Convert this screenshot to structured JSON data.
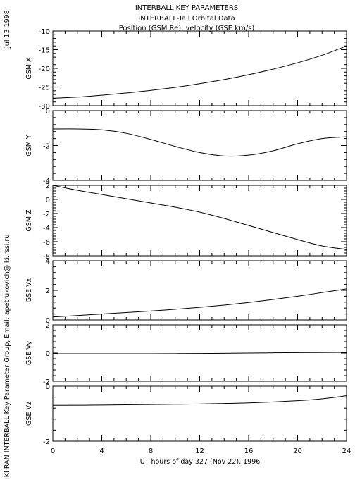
{
  "header": {
    "title_lines": [
      "INTERBALL KEY PARAMETERS",
      "INTERBALL-Tail Orbital Data",
      "Position (GSM Re), velocity (GSE km/s)"
    ]
  },
  "side_labels": {
    "date": "Jul 13 1998",
    "credit": "IKI RAN INTERBALL Key Parameter Group, Email: apetrukovich@iki.rssi.ru"
  },
  "x_axis": {
    "label": "UT hours of day 327 (Nov 22), 1996",
    "range": [
      0,
      24
    ],
    "ticks": [
      "0",
      "4",
      "8",
      "12",
      "16",
      "20",
      "24"
    ]
  },
  "colors": {
    "line": "#000000",
    "background": "#ffffff"
  },
  "chart_data": [
    {
      "type": "line",
      "ylabel": "GSM X",
      "ylim": [
        -30,
        -10
      ],
      "yticks": [
        -30,
        -25,
        -20,
        -15,
        -10
      ],
      "x": [
        0,
        2,
        4,
        6,
        8,
        10,
        12,
        14,
        16,
        18,
        20,
        22,
        24
      ],
      "values": [
        -28.0,
        -27.7,
        -27.2,
        -26.6,
        -25.9,
        -25.1,
        -24.1,
        -23.0,
        -21.7,
        -20.2,
        -18.5,
        -16.5,
        -14.0
      ]
    },
    {
      "type": "line",
      "ylabel": "GSM Y",
      "ylim": [
        -4,
        0
      ],
      "yticks": [
        -4,
        -2,
        0
      ],
      "x": [
        0,
        2,
        4,
        6,
        8,
        10,
        12,
        14,
        16,
        18,
        20,
        22,
        24
      ],
      "values": [
        -1.05,
        -1.05,
        -1.1,
        -1.3,
        -1.65,
        -2.05,
        -2.4,
        -2.6,
        -2.55,
        -2.3,
        -1.9,
        -1.6,
        -1.5
      ]
    },
    {
      "type": "line",
      "ylabel": "GSM Z",
      "ylim": [
        -8,
        2
      ],
      "yticks": [
        -8,
        -6,
        -4,
        -2,
        0,
        2
      ],
      "x": [
        0,
        2,
        4,
        6,
        8,
        10,
        12,
        14,
        16,
        18,
        20,
        22,
        24
      ],
      "values": [
        2.0,
        1.3,
        0.7,
        0.1,
        -0.5,
        -1.1,
        -1.8,
        -2.7,
        -3.7,
        -4.7,
        -5.7,
        -6.6,
        -7.1
      ]
    },
    {
      "type": "line",
      "ylabel": "GSE Vx",
      "ylim": [
        0,
        4
      ],
      "yticks": [
        0,
        2,
        4
      ],
      "x": [
        0,
        2,
        4,
        6,
        8,
        10,
        12,
        14,
        16,
        18,
        20,
        22,
        24
      ],
      "values": [
        0.2,
        0.3,
        0.4,
        0.5,
        0.6,
        0.72,
        0.85,
        1.0,
        1.18,
        1.38,
        1.6,
        1.85,
        2.1
      ]
    },
    {
      "type": "line",
      "ylabel": "GSE Vy",
      "ylim": [
        -2,
        2
      ],
      "yticks": [
        -2,
        0,
        2
      ],
      "x": [
        0,
        4,
        8,
        12,
        16,
        20,
        24
      ],
      "values": [
        -0.05,
        -0.05,
        -0.05,
        -0.03,
        0.0,
        0.03,
        0.05
      ]
    },
    {
      "type": "line",
      "ylabel": "GSE Vz",
      "ylim": [
        -2,
        0
      ],
      "yticks": [
        -2,
        0
      ],
      "x": [
        0,
        4,
        8,
        12,
        16,
        20,
        22,
        24
      ],
      "values": [
        -0.7,
        -0.69,
        -0.67,
        -0.65,
        -0.61,
        -0.53,
        -0.46,
        -0.35
      ]
    }
  ]
}
